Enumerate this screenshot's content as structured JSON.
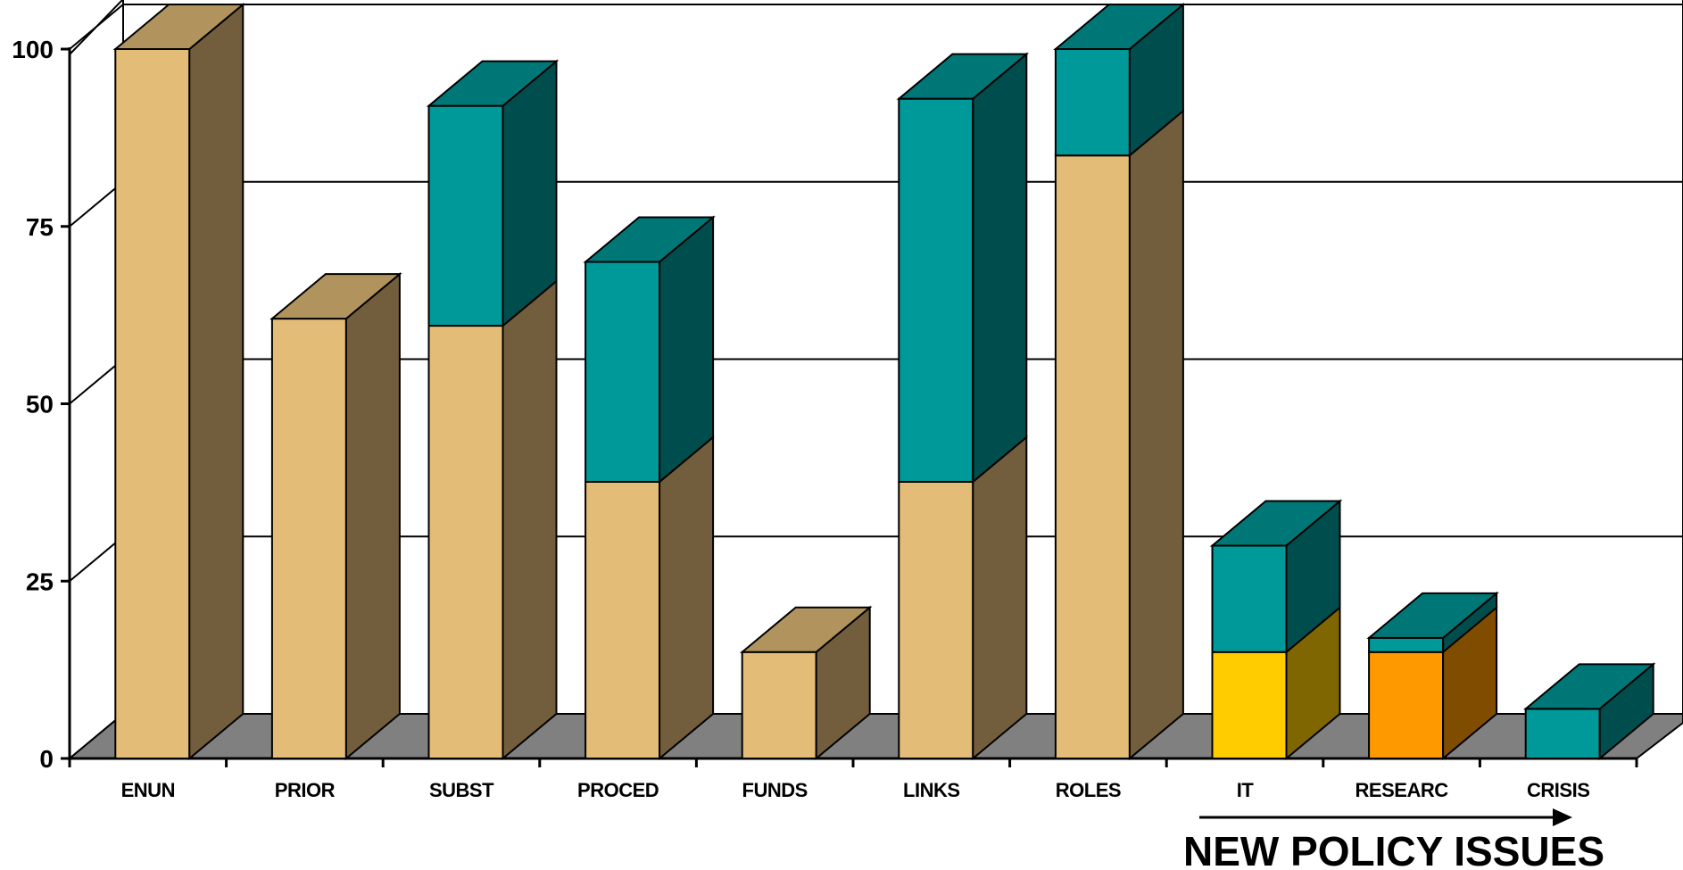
{
  "chart_data": {
    "type": "bar",
    "stacked": true,
    "three_d": true,
    "categories": [
      "ENUN",
      "PRIOR",
      "SUBST",
      "PROCED",
      "FUNDS",
      "LINKS",
      "ROLES",
      "IT",
      "RESEARC",
      "CRISIS"
    ],
    "series": [
      {
        "values": [
          100,
          62,
          61,
          39,
          15,
          39,
          85,
          15,
          15,
          0
        ],
        "colors": [
          "#E3BC77",
          "#E3BC77",
          "#E3BC77",
          "#E3BC77",
          "#E3BC77",
          "#E3BC77",
          "#E3BC77",
          "#FFCC00",
          "#FF9900",
          "#E3BC77"
        ]
      },
      {
        "values": [
          0,
          0,
          31,
          31,
          0,
          54,
          15,
          15,
          2,
          7
        ],
        "colors": [
          "#009999",
          "#009999",
          "#009999",
          "#009999",
          "#009999",
          "#009999",
          "#009999",
          "#009999",
          "#009999",
          "#009999"
        ]
      }
    ],
    "yticks": [
      "0",
      "25",
      "50",
      "75",
      "100"
    ],
    "ylim": [
      0,
      100
    ],
    "grid": true,
    "floor_color": "#808080",
    "annotation": "NEW POLICY ISSUES",
    "annotation_arrow": true,
    "annotation_span": [
      "IT",
      "CRISIS"
    ]
  }
}
